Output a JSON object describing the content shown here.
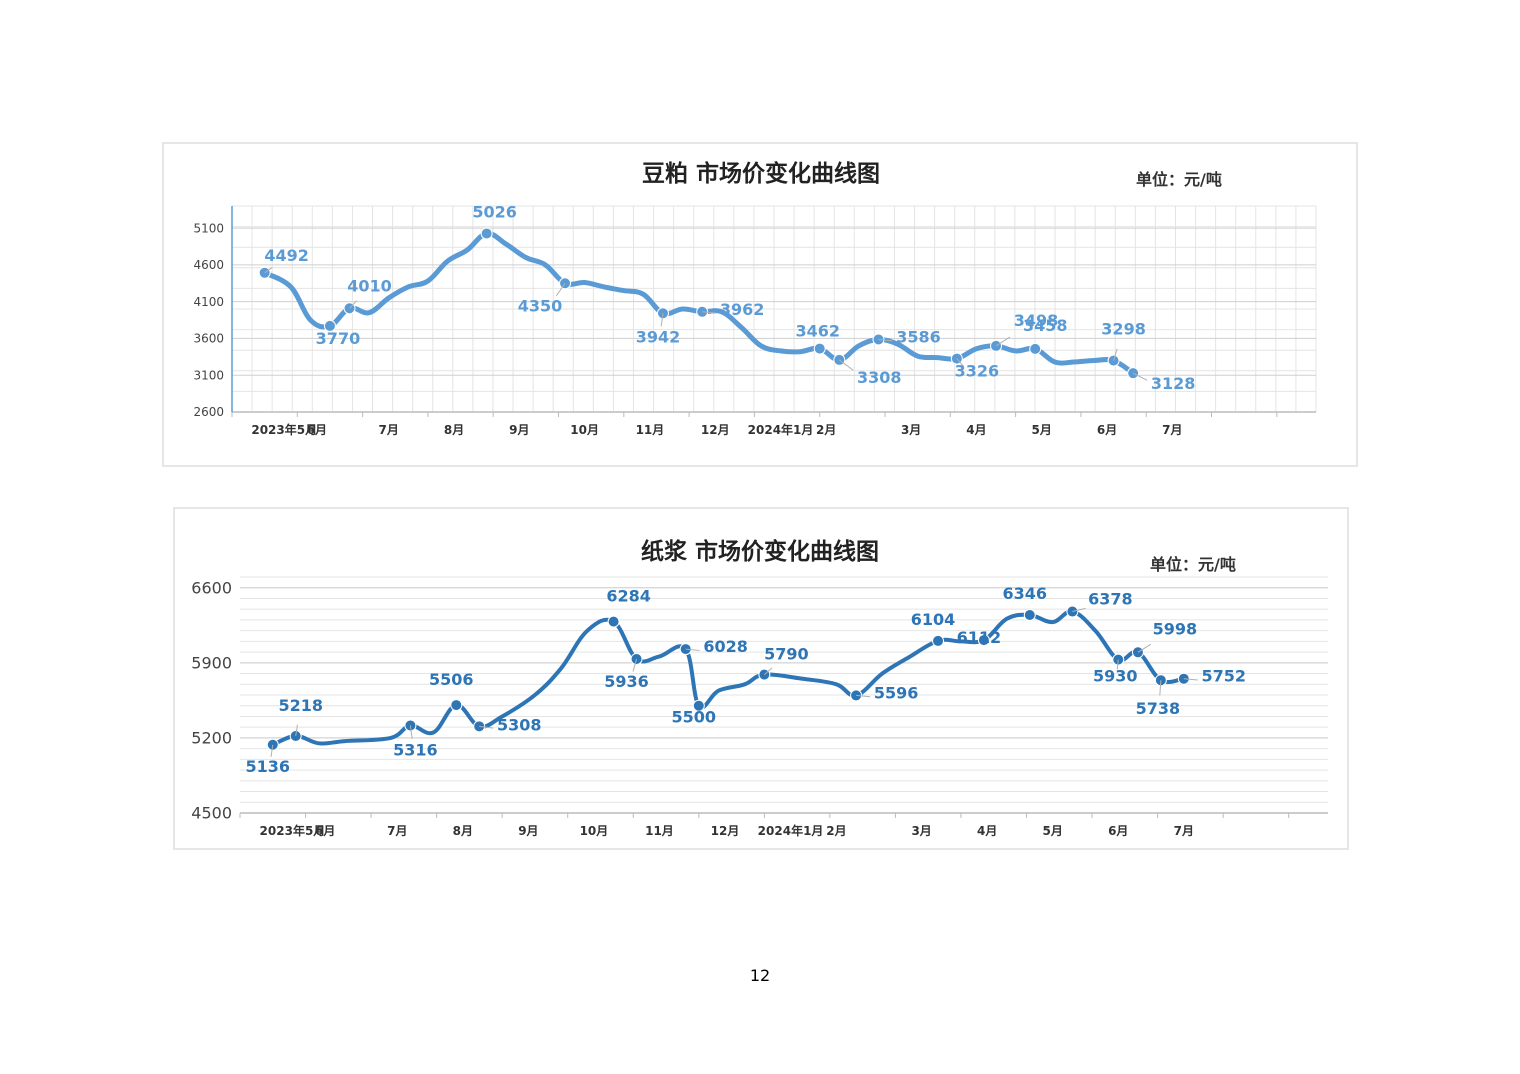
{
  "page_number": "12",
  "chart_data": [
    {
      "type": "line",
      "title": "豆粕 市场价变化曲线图",
      "unit": "单位：元/吨",
      "ylim": [
        2600,
        5400
      ],
      "yticks": [
        2600,
        3100,
        3600,
        4100,
        4600,
        5100
      ],
      "grid": true,
      "legend": "none",
      "xlim": [
        0,
        16.6
      ],
      "x_tick_labels": [
        {
          "x": 0.8,
          "label": "2023年5月"
        },
        {
          "x": 1.3,
          "label": "6月"
        },
        {
          "x": 2.4,
          "label": "7月"
        },
        {
          "x": 3.4,
          "label": "8月"
        },
        {
          "x": 4.4,
          "label": "9月"
        },
        {
          "x": 5.4,
          "label": "10月"
        },
        {
          "x": 6.4,
          "label": "11月"
        },
        {
          "x": 7.4,
          "label": "12月"
        },
        {
          "x": 8.4,
          "label": "2024年1月"
        },
        {
          "x": 9.1,
          "label": "2月"
        },
        {
          "x": 10.4,
          "label": "3月"
        },
        {
          "x": 11.4,
          "label": "4月"
        },
        {
          "x": 12.4,
          "label": "5月"
        },
        {
          "x": 13.4,
          "label": "6月"
        },
        {
          "x": 14.4,
          "label": "7月"
        }
      ],
      "color": "#5b9bd5",
      "series": [
        {
          "x": [
            0.5,
            0.9,
            1.2,
            1.5,
            1.8,
            2.1,
            2.4,
            2.7,
            3.0,
            3.3,
            3.6,
            3.9,
            4.2,
            4.5,
            4.8,
            5.1,
            5.4,
            5.7,
            6.0,
            6.3,
            6.6,
            6.9,
            7.2,
            7.5,
            7.8,
            8.1,
            8.4,
            8.7,
            9.0,
            9.3,
            9.6,
            9.9,
            10.2,
            10.5,
            10.8,
            11.1,
            11.4,
            11.7,
            12.0,
            12.3,
            12.6,
            12.9,
            13.2,
            13.5,
            13.8,
            14.1,
            14.4,
            14.7
          ],
          "values": [
            4492,
            4300,
            3850,
            3770,
            4010,
            3950,
            4150,
            4300,
            4380,
            4650,
            4800,
            5026,
            4880,
            4700,
            4600,
            4350,
            4360,
            4300,
            4250,
            4200,
            3942,
            4000,
            3962,
            3962,
            3750,
            3500,
            3430,
            3420,
            3462,
            3308,
            3500,
            3586,
            3520,
            3360,
            3340,
            3326,
            3460,
            3498,
            3430,
            3458,
            3280,
            3280,
            3300,
            3298,
            3128,
            null,
            null,
            null
          ],
          "markers": [
            0,
            3,
            4,
            11,
            15,
            20,
            22,
            28,
            29,
            31,
            35,
            37,
            39,
            43,
            44
          ]
        }
      ],
      "data_labels": [
        "4492",
        "3770",
        "4010",
        "5026",
        "4350",
        "3942",
        "3962",
        "3462",
        "3308",
        "3586",
        "3326",
        "3498",
        "3458",
        "3298",
        "3128"
      ]
    },
    {
      "type": "line",
      "title": "纸浆 市场价变化曲线图",
      "unit": "单位：元/吨",
      "ylim": [
        4500,
        6700
      ],
      "yticks": [
        4500,
        5200,
        5900,
        6600
      ],
      "grid": true,
      "legend": "none",
      "xlim": [
        0,
        16.6
      ],
      "x_tick_labels": [
        {
          "x": 0.8,
          "label": "2023年5月"
        },
        {
          "x": 1.3,
          "label": "6月"
        },
        {
          "x": 2.4,
          "label": "7月"
        },
        {
          "x": 3.4,
          "label": "8月"
        },
        {
          "x": 4.4,
          "label": "9月"
        },
        {
          "x": 5.4,
          "label": "10月"
        },
        {
          "x": 6.4,
          "label": "11月"
        },
        {
          "x": 7.4,
          "label": "12月"
        },
        {
          "x": 8.4,
          "label": "2024年1月"
        },
        {
          "x": 9.1,
          "label": "2月"
        },
        {
          "x": 10.4,
          "label": "3月"
        },
        {
          "x": 11.4,
          "label": "4月"
        },
        {
          "x": 12.4,
          "label": "5月"
        },
        {
          "x": 13.4,
          "label": "6月"
        },
        {
          "x": 14.4,
          "label": "7月"
        }
      ],
      "color": "#2e75b6",
      "series": [
        {
          "x": [
            0.5,
            0.85,
            1.2,
            1.6,
            2.3,
            2.6,
            2.95,
            3.3,
            3.65,
            4.0,
            4.5,
            4.9,
            5.3,
            5.7,
            6.05,
            6.4,
            6.8,
            7.0,
            7.3,
            7.7,
            8.0,
            8.6,
            9.1,
            9.4,
            9.8,
            10.2,
            10.65,
            11.0,
            11.35,
            11.7,
            12.05,
            12.4,
            12.7,
            13.05,
            13.4,
            13.7,
            14.05,
            14.4,
            14.75,
            15.1
          ],
          "values": [
            5136,
            5218,
            5150,
            5170,
            5200,
            5316,
            5250,
            5506,
            5308,
            5400,
            5600,
            5850,
            6200,
            6284,
            5936,
            5960,
            6028,
            5500,
            5640,
            5700,
            5790,
            5750,
            5700,
            5596,
            5800,
            5950,
            6104,
            6100,
            6112,
            6310,
            6346,
            6280,
            6378,
            6200,
            5930,
            5998,
            5738,
            5752,
            null,
            null
          ],
          "markers": [
            0,
            1,
            5,
            7,
            8,
            13,
            14,
            16,
            17,
            20,
            23,
            26,
            28,
            30,
            32,
            34,
            35,
            36,
            37
          ]
        }
      ],
      "data_labels": [
        "5136",
        "5218",
        "5316",
        "5506",
        "5308",
        "6284",
        "5936",
        "6028",
        "5500",
        "5790",
        "5596",
        "6104",
        "6112",
        "6346",
        "6378",
        "5930",
        "5998",
        "5738",
        "5752"
      ]
    }
  ]
}
